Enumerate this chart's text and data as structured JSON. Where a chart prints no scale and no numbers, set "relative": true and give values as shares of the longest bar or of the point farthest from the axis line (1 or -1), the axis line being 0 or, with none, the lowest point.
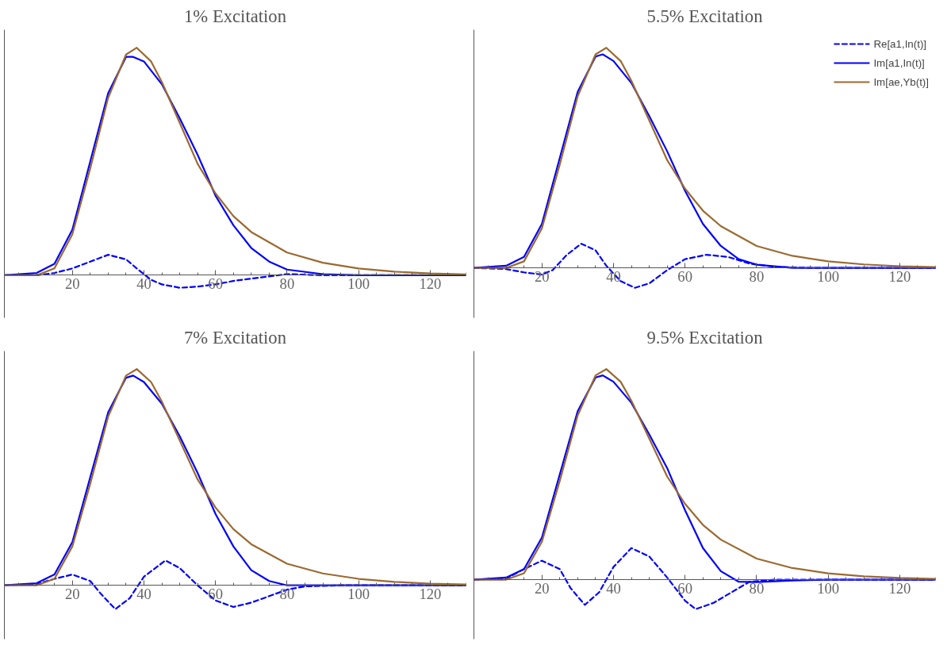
{
  "chart_data": [
    {
      "type": "line",
      "title": "1% Excitation",
      "relative": true,
      "xlim": [
        1,
        130
      ],
      "xticks": [
        20,
        40,
        60,
        80,
        100,
        120
      ],
      "tick_labels": "x",
      "grid": false,
      "legend": false,
      "series": [
        {
          "color": "#0000ff",
          "line_style": "dashed",
          "x": [
            1,
            10,
            15,
            20,
            25,
            30,
            35,
            38,
            42,
            45,
            50,
            55,
            60,
            65,
            70,
            80,
            90,
            130
          ],
          "values": [
            0,
            0,
            0.01,
            0.03,
            0.06,
            0.09,
            0.07,
            0.03,
            -0.02,
            -0.04,
            -0.055,
            -0.05,
            -0.04,
            -0.025,
            -0.015,
            0.005,
            0,
            0
          ]
        },
        {
          "color": "#0000ff",
          "line_style": "solid",
          "x": [
            1,
            10,
            15,
            20,
            25,
            30,
            35,
            37,
            40,
            45,
            50,
            55,
            60,
            65,
            70,
            75,
            80,
            90,
            100,
            130
          ],
          "values": [
            0,
            0.01,
            0.05,
            0.2,
            0.5,
            0.8,
            0.96,
            0.96,
            0.94,
            0.84,
            0.69,
            0.53,
            0.35,
            0.22,
            0.12,
            0.06,
            0.025,
            0.005,
            0,
            0
          ]
        },
        {
          "color": "#9b6a30",
          "line_style": "solid",
          "x": [
            1,
            10,
            15,
            20,
            25,
            30,
            35,
            38,
            42,
            45,
            50,
            55,
            60,
            65,
            70,
            80,
            90,
            100,
            110,
            120,
            130
          ],
          "values": [
            0,
            0,
            0.03,
            0.18,
            0.47,
            0.78,
            0.97,
            1,
            0.94,
            0.85,
            0.67,
            0.49,
            0.36,
            0.26,
            0.19,
            0.1,
            0.055,
            0.03,
            0.016,
            0.008,
            0.004
          ]
        }
      ]
    },
    {
      "type": "line",
      "title": "5.5% Excitation",
      "relative": true,
      "xlim": [
        1,
        130
      ],
      "xticks": [
        20,
        40,
        60,
        80,
        100,
        120
      ],
      "tick_labels": "x",
      "grid": false,
      "legend": "top right",
      "series": [
        {
          "name": "Re[a1,In(t)]",
          "color": "#0000ff",
          "line_style": "dashed",
          "x": [
            1,
            10,
            15,
            20,
            23,
            27,
            31,
            35,
            38,
            42,
            46,
            50,
            55,
            60,
            66,
            72,
            78,
            85,
            95,
            130
          ],
          "values": [
            0,
            -0.005,
            -0.02,
            -0.03,
            -0.01,
            0.06,
            0.11,
            0.08,
            0.01,
            -0.06,
            -0.09,
            -0.07,
            -0.01,
            0.04,
            0.06,
            0.05,
            0.02,
            0.005,
            0,
            0
          ]
        },
        {
          "name": "Im[a1,In(t)]",
          "color": "#0000ff",
          "line_style": "solid",
          "x": [
            1,
            10,
            15,
            20,
            25,
            30,
            35,
            37,
            40,
            45,
            50,
            55,
            60,
            65,
            70,
            75,
            80,
            90,
            130
          ],
          "values": [
            0,
            0.01,
            0.05,
            0.2,
            0.5,
            0.8,
            0.96,
            0.97,
            0.94,
            0.84,
            0.69,
            0.53,
            0.35,
            0.2,
            0.1,
            0.04,
            0.015,
            0,
            0
          ]
        },
        {
          "name": "Im[ae,Yb(t)]",
          "color": "#9b6a30",
          "line_style": "solid",
          "x": [
            1,
            10,
            15,
            20,
            25,
            30,
            35,
            38,
            42,
            45,
            50,
            55,
            60,
            65,
            70,
            80,
            90,
            100,
            110,
            120,
            130
          ],
          "values": [
            0,
            0,
            0.03,
            0.18,
            0.47,
            0.78,
            0.97,
            1,
            0.94,
            0.85,
            0.67,
            0.49,
            0.36,
            0.26,
            0.19,
            0.1,
            0.055,
            0.03,
            0.016,
            0.008,
            0.004
          ]
        }
      ]
    },
    {
      "type": "line",
      "title": "7% Excitation",
      "relative": true,
      "xlim": [
        1,
        130
      ],
      "xticks": [
        20,
        40,
        60,
        80,
        100,
        120
      ],
      "tick_labels": "x",
      "grid": false,
      "legend": false,
      "series": [
        {
          "color": "#0000ff",
          "line_style": "dashed",
          "x": [
            1,
            10,
            15,
            20,
            25,
            28,
            32,
            36,
            40,
            46,
            50,
            55,
            60,
            65,
            70,
            75,
            80,
            85,
            95,
            130
          ],
          "values": [
            0,
            0.005,
            0.03,
            0.05,
            0.02,
            -0.04,
            -0.11,
            -0.06,
            0.04,
            0.115,
            0.08,
            0,
            -0.07,
            -0.1,
            -0.08,
            -0.05,
            -0.02,
            -0.005,
            0,
            0
          ]
        },
        {
          "color": "#0000ff",
          "line_style": "solid",
          "x": [
            1,
            10,
            15,
            20,
            25,
            30,
            35,
            37,
            40,
            45,
            50,
            55,
            60,
            65,
            70,
            75,
            80,
            130
          ],
          "values": [
            0,
            0.01,
            0.05,
            0.2,
            0.5,
            0.8,
            0.96,
            0.97,
            0.94,
            0.84,
            0.69,
            0.52,
            0.33,
            0.18,
            0.07,
            0.02,
            0,
            0
          ]
        },
        {
          "color": "#9b6a30",
          "line_style": "solid",
          "x": [
            1,
            10,
            15,
            20,
            25,
            30,
            35,
            38,
            42,
            45,
            50,
            55,
            60,
            65,
            70,
            80,
            90,
            100,
            110,
            120,
            130
          ],
          "values": [
            0,
            0,
            0.03,
            0.18,
            0.47,
            0.78,
            0.97,
            1,
            0.94,
            0.85,
            0.67,
            0.49,
            0.36,
            0.26,
            0.19,
            0.1,
            0.055,
            0.03,
            0.016,
            0.008,
            0.004
          ]
        }
      ]
    },
    {
      "type": "line",
      "title": "9.5% Excitation",
      "relative": true,
      "xlim": [
        1,
        130
      ],
      "xticks": [
        20,
        40,
        60,
        80,
        100,
        120
      ],
      "tick_labels": "x",
      "grid": false,
      "legend": false,
      "series": [
        {
          "color": "#0000ff",
          "line_style": "dashed",
          "x": [
            1,
            10,
            15,
            20,
            25,
            28,
            32,
            36,
            40,
            45,
            50,
            55,
            60,
            63,
            68,
            73,
            78,
            85,
            130
          ],
          "values": [
            0,
            0.005,
            0.05,
            0.09,
            0.05,
            -0.04,
            -0.12,
            -0.06,
            0.06,
            0.15,
            0.11,
            0.01,
            -0.1,
            -0.14,
            -0.11,
            -0.06,
            -0.01,
            0,
            0
          ]
        },
        {
          "color": "#0000ff",
          "line_style": "solid",
          "x": [
            1,
            10,
            15,
            20,
            25,
            30,
            35,
            37,
            40,
            45,
            50,
            55,
            60,
            65,
            70,
            75,
            80,
            90,
            100,
            130
          ],
          "values": [
            0,
            0.01,
            0.05,
            0.2,
            0.5,
            0.8,
            0.96,
            0.97,
            0.94,
            0.84,
            0.69,
            0.53,
            0.33,
            0.15,
            0.04,
            -0.01,
            -0.012,
            -0.004,
            0,
            0
          ]
        },
        {
          "color": "#9b6a30",
          "line_style": "solid",
          "x": [
            1,
            10,
            15,
            20,
            25,
            30,
            35,
            38,
            42,
            45,
            50,
            55,
            60,
            65,
            70,
            80,
            90,
            100,
            110,
            120,
            130
          ],
          "values": [
            0,
            0,
            0.03,
            0.18,
            0.47,
            0.78,
            0.97,
            1,
            0.94,
            0.85,
            0.67,
            0.49,
            0.36,
            0.26,
            0.19,
            0.1,
            0.055,
            0.03,
            0.016,
            0.008,
            0.004
          ]
        }
      ]
    }
  ]
}
